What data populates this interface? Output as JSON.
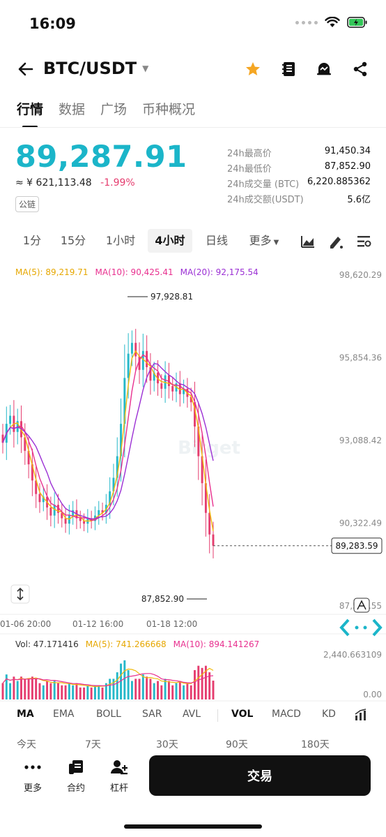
{
  "status": {
    "time": "16:09"
  },
  "header": {
    "pair": "BTC/USDT"
  },
  "tabs": [
    {
      "label": "行情",
      "active": true
    },
    {
      "label": "数据",
      "active": false
    },
    {
      "label": "广场",
      "active": false
    },
    {
      "label": "币种概况",
      "active": false
    }
  ],
  "price": {
    "last": "89,287.91",
    "cny": "≈ ¥ 621,113.48",
    "change": "-1.99%",
    "chain_badge": "公链"
  },
  "stats": [
    {
      "label": "24h最高价",
      "value": "91,450.34"
    },
    {
      "label": "24h最低价",
      "value": "87,852.90"
    },
    {
      "label": "24h成交量 (BTC)",
      "value": "6,220.885362"
    },
    {
      "label": "24h成交额(USDT)",
      "value": "5.6亿"
    }
  ],
  "intervals": [
    {
      "label": "1分",
      "active": false
    },
    {
      "label": "15分",
      "active": false
    },
    {
      "label": "1小时",
      "active": false
    },
    {
      "label": "4小时",
      "active": true
    },
    {
      "label": "日线",
      "active": false
    },
    {
      "label": "更多",
      "active": false
    }
  ],
  "ma_legend": {
    "ma5": "MA(5): 89,219.71",
    "ma10": "MA(10): 90,425.41",
    "ma20": "MA(20): 92,175.54"
  },
  "vol_legend": {
    "vol": "Vol: 47.171416",
    "ma5": "MA(5): 741.266668",
    "ma10": "MA(10): 894.141267"
  },
  "indicators": [
    "MA",
    "EMA",
    "BOLL",
    "SAR",
    "AVL",
    "VOL",
    "MACD",
    "KD"
  ],
  "active_indicators": [
    "MA",
    "VOL"
  ],
  "periods": [
    "今天",
    "7天",
    "30天",
    "90天",
    "180天"
  ],
  "bottom_bar": {
    "more": "更多",
    "contract": "合约",
    "margin": "杠杆",
    "trade": "交易"
  },
  "colors": {
    "up": "#25b8c9",
    "down": "#e53d6f",
    "ma5": "#f0b90b",
    "ma10": "#e8308f",
    "ma20": "#9b2fd4",
    "price": "#1bb5c9"
  },
  "chart_data": {
    "type": "candlestick",
    "ylim": [
      87000,
      98900
    ],
    "y_ticks": [
      "98,620.29",
      "95,854.36",
      "93,088.42",
      "90,322.49",
      "87,556.55"
    ],
    "x_ticks": [
      "01-06 20:00",
      "01-12 16:00",
      "01-18 12:00"
    ],
    "high_label": "97,928.81",
    "low_label": "87,852.90",
    "last_price_label": "89,283.59",
    "last_price": 89283.59,
    "watermark": "Bitget",
    "close": [
      93100,
      93800,
      94100,
      93500,
      93900,
      93300,
      92800,
      92300,
      91700,
      91200,
      90900,
      91100,
      90700,
      90400,
      90800,
      90500,
      90300,
      90100,
      90400,
      90600,
      90300,
      90200,
      90100,
      90300,
      90200,
      90400,
      90600,
      90500,
      90800,
      91300,
      91800,
      92600,
      93800,
      95500,
      96400,
      96800,
      96300,
      95800,
      96500,
      95900,
      95400,
      95700,
      95300,
      95100,
      95600,
      95200,
      95000,
      95300,
      94900,
      95100,
      94800,
      94600,
      93700,
      92600,
      91600,
      90500,
      89700,
      89283
    ]
  }
}
